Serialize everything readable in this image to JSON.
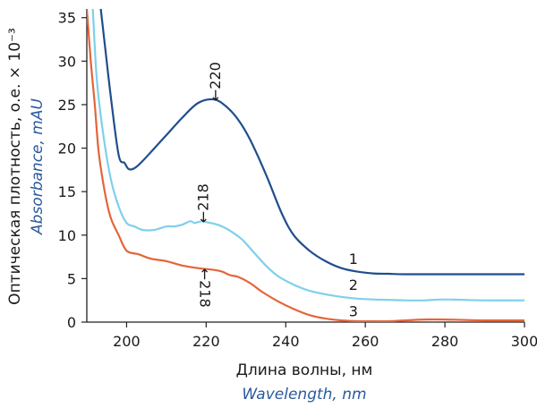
{
  "chart_data": {
    "type": "line",
    "xlabel": "Длина волны, нм",
    "xlabel_en": "Wavelength, nm",
    "ylabel": "Оптическая плотность, о.е. × 10⁻³",
    "ylabel_en": "Absorbance, mAU",
    "xlim": [
      190,
      300
    ],
    "ylim": [
      0,
      36
    ],
    "xticks": [
      "200",
      "220",
      "240",
      "260",
      "280",
      "300"
    ],
    "xtick_values": [
      200,
      220,
      240,
      260,
      280,
      300
    ],
    "yticks": [
      "0",
      "5",
      "10",
      "15",
      "20",
      "25",
      "30",
      "35"
    ],
    "ytick_values": [
      0,
      5,
      10,
      15,
      20,
      25,
      30,
      35
    ],
    "grid": false,
    "series": [
      {
        "name": "1",
        "color": "#1f4e8c",
        "x": [
          193.5,
          194.5,
          196,
          198,
          199.5,
          200.5,
          202,
          204,
          207,
          210,
          214,
          218,
          222,
          225,
          228,
          231,
          235,
          239,
          242,
          246,
          250,
          254,
          258,
          262,
          266,
          270,
          280,
          290,
          300
        ],
        "y": [
          36,
          32,
          26,
          19.2,
          18.3,
          17.6,
          17.7,
          18.5,
          20,
          21.5,
          23.5,
          25.2,
          25.6,
          24.8,
          23.3,
          21,
          17,
          12.5,
          10,
          8.2,
          7,
          6.2,
          5.8,
          5.6,
          5.55,
          5.5,
          5.5,
          5.5,
          5.5
        ]
      },
      {
        "name": "2",
        "color": "#7fd0ea",
        "x": [
          191.5,
          192.5,
          194,
          196,
          198,
          200,
          202,
          204,
          207,
          210,
          212,
          214,
          216,
          217,
          218,
          219,
          220,
          222,
          224,
          226,
          229,
          232,
          235,
          238,
          242,
          246,
          250,
          254,
          258,
          262,
          266,
          270,
          275,
          280,
          290,
          300
        ],
        "y": [
          36,
          28,
          22,
          16.5,
          13.3,
          11.4,
          11,
          10.6,
          10.6,
          11,
          11,
          11.2,
          11.6,
          11.4,
          11.5,
          11.6,
          11.5,
          11.3,
          11,
          10.5,
          9.5,
          8,
          6.5,
          5.3,
          4.3,
          3.6,
          3.2,
          2.9,
          2.7,
          2.6,
          2.55,
          2.5,
          2.5,
          2.6,
          2.5,
          2.5
        ]
      },
      {
        "name": "3",
        "color": "#e4653a",
        "x": [
          190,
          191,
          192,
          193,
          194.5,
          196,
          198,
          200,
          203,
          206,
          210,
          214,
          218,
          222,
          224,
          226,
          228,
          231,
          234,
          238,
          242,
          246,
          250,
          254,
          258,
          262,
          266,
          270,
          275,
          280,
          290,
          300
        ],
        "y": [
          36,
          30,
          25,
          19.5,
          15,
          12,
          10,
          8.2,
          7.8,
          7.3,
          7.0,
          6.5,
          6.2,
          6.0,
          5.8,
          5.4,
          5.2,
          4.5,
          3.5,
          2.4,
          1.5,
          0.8,
          0.4,
          0.2,
          0.1,
          0.1,
          0.1,
          0.2,
          0.3,
          0.3,
          0.2,
          0.2
        ]
      }
    ],
    "curve_labels": [
      {
        "text": "1",
        "x": 257,
        "y": 7.2
      },
      {
        "text": "2",
        "x": 257,
        "y": 4.2
      },
      {
        "text": "3",
        "x": 257,
        "y": 1.2
      }
    ],
    "annotations": [
      {
        "text": "←220",
        "x": 222,
        "y": 25.6,
        "orientation": "vertical-up"
      },
      {
        "text": "←218",
        "x": 219,
        "y": 11.6,
        "orientation": "vertical-up"
      },
      {
        "text": "←218",
        "x": 219,
        "y": 6.0,
        "orientation": "vertical-down"
      }
    ]
  }
}
